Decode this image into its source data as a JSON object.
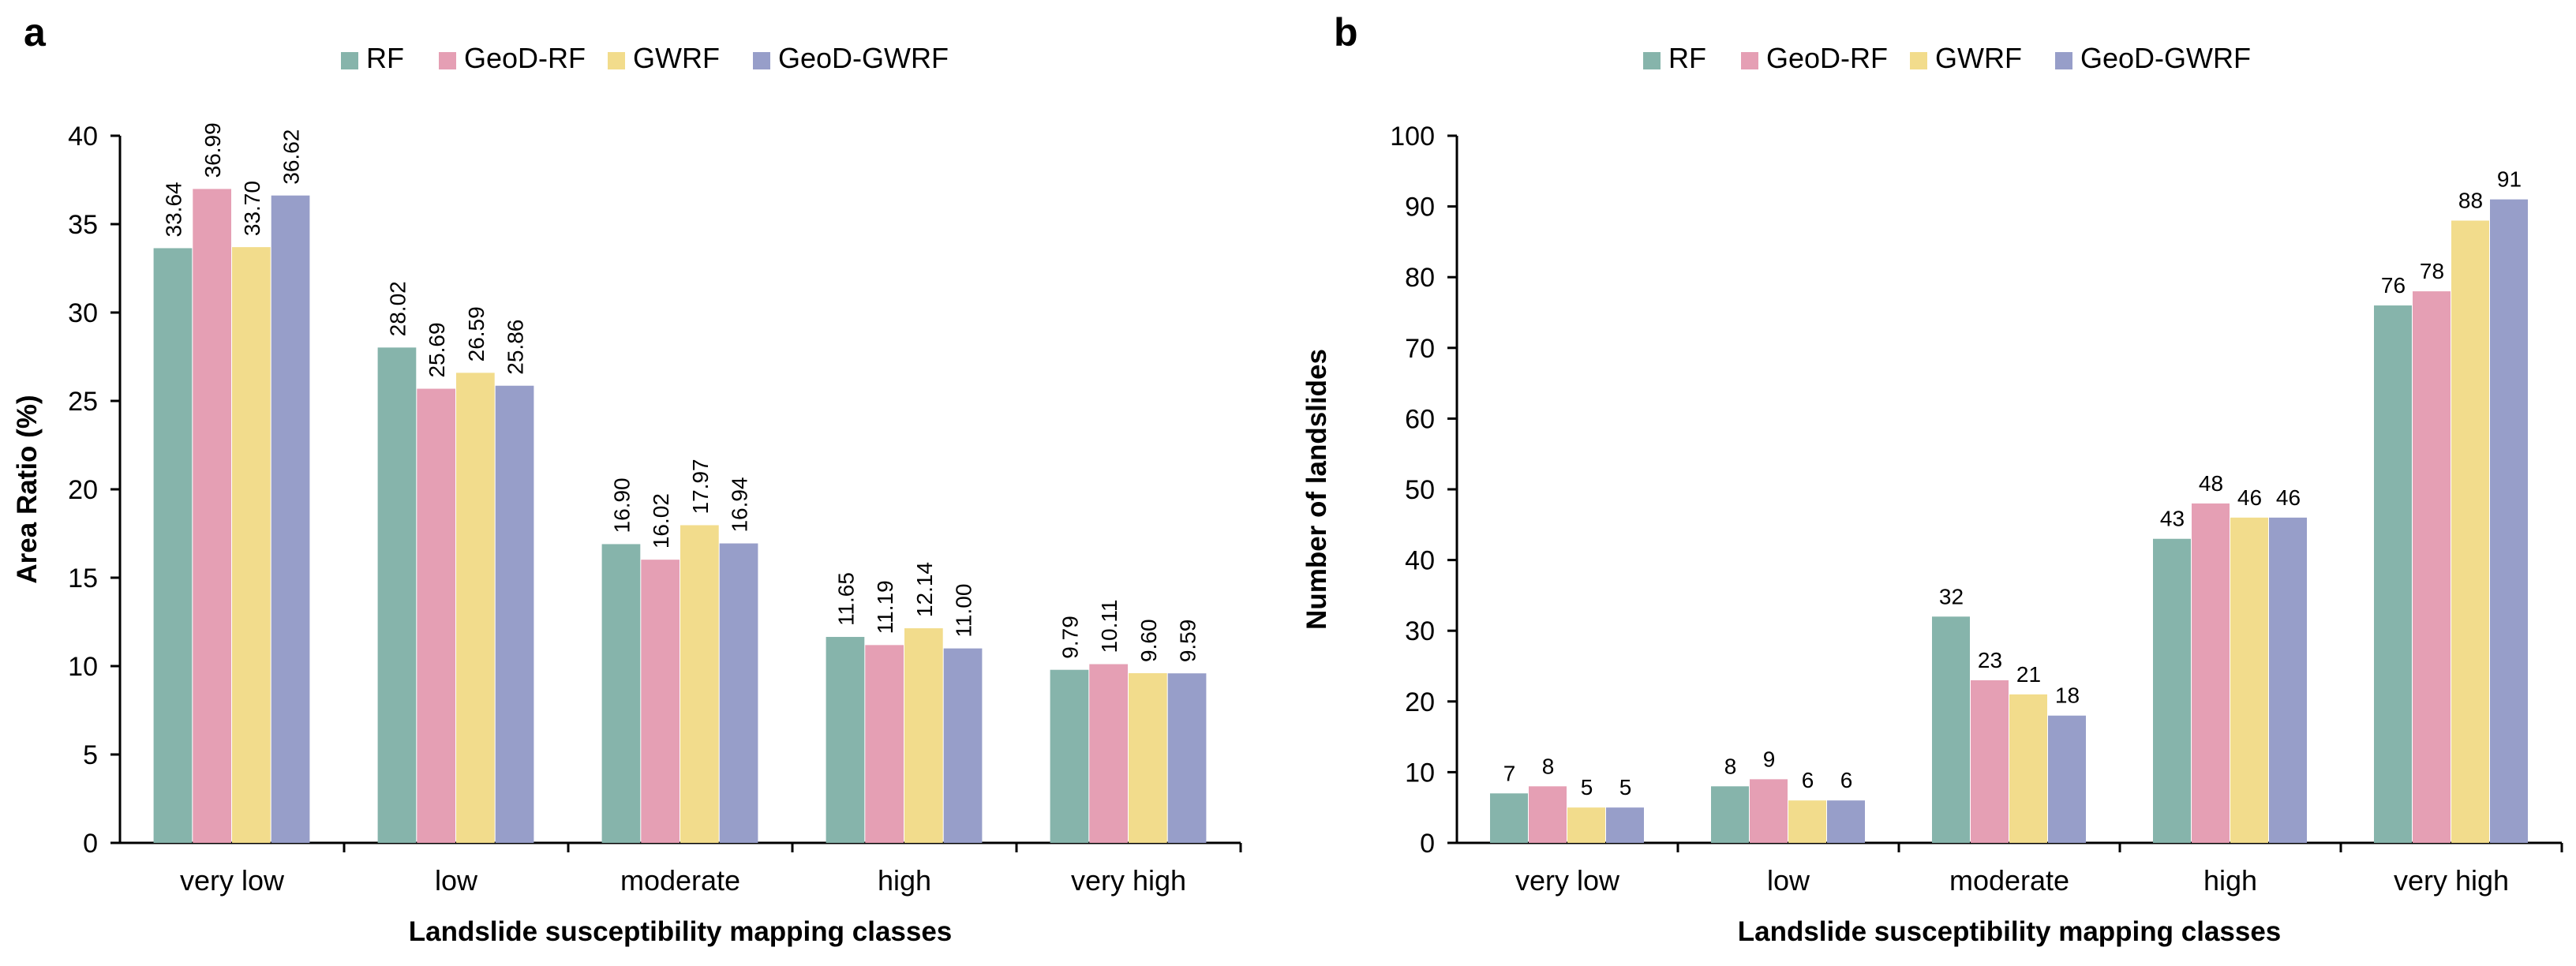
{
  "colors": {
    "RF": "#86b4ab",
    "GeoD-RF": "#e59fb4",
    "GWRF": "#f2dc8c",
    "GeoD-GWRF": "#979ec9"
  },
  "chart_data": [
    {
      "panel": "a",
      "type": "bar",
      "title": "",
      "xlabel": "Landslide susceptibility mapping classes",
      "ylabel": "Area Ratio (%)",
      "ylim": [
        0,
        40
      ],
      "yticks": [
        0,
        5,
        10,
        15,
        20,
        25,
        30,
        35,
        40
      ],
      "grid": false,
      "legend": "top-center",
      "label_rotation": "vertical",
      "label_format": "2dp",
      "categories": [
        "very low",
        "low",
        "moderate",
        "high",
        "very high"
      ],
      "series": [
        {
          "name": "RF",
          "values": [
            33.64,
            28.02,
            16.9,
            11.65,
            9.79
          ],
          "labels": [
            "33.64",
            "28.02",
            "16.90",
            "11.65",
            "9.79"
          ]
        },
        {
          "name": "GeoD-RF",
          "values": [
            36.99,
            25.69,
            16.02,
            11.19,
            10.11
          ],
          "labels": [
            "36.99",
            "25.69",
            "16.02",
            "11.19",
            "10.11"
          ]
        },
        {
          "name": "GWRF",
          "values": [
            33.7,
            26.59,
            17.97,
            12.14,
            9.6
          ],
          "labels": [
            "33.70",
            "26.59",
            "17.97",
            "12.14",
            "9.60"
          ]
        },
        {
          "name": "GeoD-GWRF",
          "values": [
            36.62,
            25.86,
            16.94,
            11.0,
            9.59
          ],
          "labels": [
            "36.62",
            "25.86",
            "16.94",
            "11.00",
            "9.59"
          ]
        }
      ]
    },
    {
      "panel": "b",
      "type": "bar",
      "title": "",
      "xlabel": "Landslide susceptibility mapping classes",
      "ylabel": "Number of landslides",
      "ylim": [
        0,
        100
      ],
      "yticks": [
        0,
        10,
        20,
        30,
        40,
        50,
        60,
        70,
        80,
        90,
        100
      ],
      "grid": false,
      "legend": "top-center",
      "label_rotation": "horizontal",
      "label_format": "int",
      "categories": [
        "very low",
        "low",
        "moderate",
        "high",
        "very high"
      ],
      "series": [
        {
          "name": "RF",
          "values": [
            7,
            8,
            32,
            43,
            76
          ],
          "labels": [
            "7",
            "8",
            "32",
            "43",
            "76"
          ]
        },
        {
          "name": "GeoD-RF",
          "values": [
            8,
            9,
            23,
            48,
            78
          ],
          "labels": [
            "8",
            "9",
            "23",
            "48",
            "78"
          ]
        },
        {
          "name": "GWRF",
          "values": [
            5,
            6,
            21,
            46,
            88
          ],
          "labels": [
            "5",
            "6",
            "21",
            "46",
            "88"
          ]
        },
        {
          "name": "GeoD-GWRF",
          "values": [
            5,
            6,
            18,
            46,
            91
          ],
          "labels": [
            "5",
            "6",
            "18",
            "46",
            "91"
          ]
        }
      ]
    }
  ]
}
